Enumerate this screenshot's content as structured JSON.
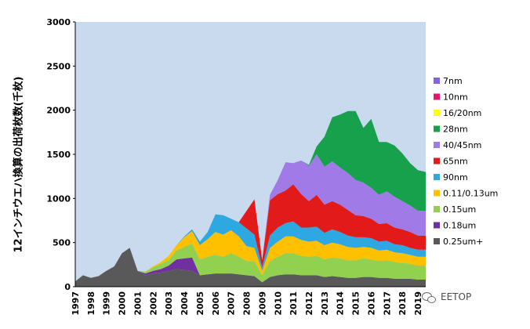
{
  "chart_data": {
    "type": "area",
    "stacked": true,
    "ylabel": "12インチウエハ換算の出荷枚数(千枚)",
    "ylim": [
      0,
      3000
    ],
    "yticks": [
      0,
      500,
      1000,
      1500,
      2000,
      2500,
      3000
    ],
    "x_years": [
      "1997",
      "1998",
      "1999",
      "2000",
      "2001",
      "2002",
      "2003",
      "2004",
      "2005",
      "2006",
      "2007",
      "2008",
      "2009",
      "2010",
      "2011",
      "2012",
      "2013",
      "2014",
      "2015",
      "2016",
      "2017",
      "2018",
      "2019"
    ],
    "x": [
      1997,
      1997.5,
      1998,
      1998.5,
      1999,
      1999.5,
      2000,
      2000.5,
      2001,
      2001.5,
      2002,
      2002.5,
      2003,
      2003.5,
      2004,
      2004.5,
      2005,
      2005.5,
      2006,
      2006.5,
      2007,
      2007.5,
      2008,
      2008.5,
      2009,
      2009.5,
      2010,
      2010.5,
      2011,
      2011.5,
      2012,
      2012.5,
      2013,
      2013.5,
      2014,
      2014.5,
      2015,
      2015.5,
      2016,
      2016.5,
      2017,
      2017.5,
      2018,
      2018.5,
      2019,
      2019.5
    ],
    "legend_position": "right",
    "grid": false,
    "background_color": "#c9d9ee",
    "series": [
      {
        "name": "0.25um+",
        "color": "#595959",
        "values": [
          60,
          130,
          100,
          120,
          180,
          230,
          380,
          440,
          180,
          130,
          150,
          160,
          180,
          200,
          190,
          180,
          130,
          140,
          150,
          150,
          150,
          140,
          130,
          120,
          50,
          110,
          130,
          140,
          140,
          130,
          130,
          130,
          110,
          120,
          110,
          100,
          100,
          110,
          110,
          100,
          100,
          90,
          90,
          90,
          80,
          80
        ]
      },
      {
        "name": "0.18um",
        "color": "#7030a0",
        "values": [
          0,
          0,
          0,
          0,
          0,
          0,
          0,
          0,
          0,
          20,
          30,
          40,
          60,
          110,
          130,
          150,
          0,
          0,
          0,
          0,
          0,
          0,
          0,
          0,
          0,
          0,
          0,
          0,
          0,
          0,
          0,
          0,
          0,
          0,
          0,
          0,
          0,
          0,
          0,
          0,
          0,
          0,
          0,
          0,
          0,
          0
        ]
      },
      {
        "name": "0.15um",
        "color": "#92d050",
        "values": [
          0,
          0,
          0,
          0,
          0,
          0,
          0,
          0,
          0,
          20,
          40,
          60,
          60,
          100,
          130,
          160,
          180,
          200,
          210,
          190,
          230,
          200,
          160,
          170,
          80,
          180,
          210,
          240,
          240,
          220,
          210,
          220,
          200,
          210,
          210,
          200,
          200,
          210,
          200,
          190,
          200,
          190,
          180,
          170,
          160,
          160
        ]
      },
      {
        "name": "0.11/0.13um",
        "color": "#ffc000",
        "values": [
          0,
          0,
          0,
          0,
          0,
          0,
          0,
          0,
          0,
          0,
          10,
          20,
          50,
          60,
          110,
          140,
          160,
          200,
          260,
          250,
          260,
          230,
          170,
          150,
          50,
          150,
          170,
          190,
          190,
          180,
          170,
          170,
          160,
          170,
          160,
          150,
          140,
          130,
          130,
          120,
          120,
          110,
          110,
          100,
          100,
          100
        ]
      },
      {
        "name": "90nm",
        "color": "#2ea8e0",
        "values": [
          0,
          0,
          0,
          0,
          0,
          0,
          0,
          0,
          0,
          0,
          0,
          0,
          0,
          0,
          10,
          20,
          40,
          80,
          200,
          220,
          130,
          160,
          200,
          150,
          40,
          140,
          160,
          150,
          170,
          140,
          160,
          160,
          140,
          150,
          140,
          130,
          120,
          110,
          110,
          100,
          100,
          90,
          90,
          80,
          80,
          80
        ]
      },
      {
        "name": "65nm",
        "color": "#e21a1a",
        "values": [
          0,
          0,
          0,
          0,
          0,
          0,
          0,
          0,
          0,
          0,
          0,
          0,
          0,
          0,
          0,
          0,
          0,
          0,
          0,
          0,
          0,
          0,
          200,
          400,
          80,
          400,
          380,
          370,
          420,
          380,
          300,
          360,
          320,
          320,
          310,
          290,
          250,
          240,
          220,
          200,
          200,
          190,
          180,
          180,
          160,
          160
        ]
      },
      {
        "name": "40/45nm",
        "color": "#a07be8",
        "values": [
          0,
          0,
          0,
          0,
          0,
          0,
          0,
          0,
          0,
          0,
          0,
          0,
          0,
          0,
          0,
          0,
          0,
          0,
          0,
          0,
          0,
          0,
          0,
          0,
          0,
          60,
          160,
          320,
          240,
          380,
          400,
          460,
          430,
          450,
          420,
          420,
          400,
          380,
          350,
          330,
          360,
          350,
          320,
          300,
          280,
          280
        ]
      },
      {
        "name": "28nm",
        "color": "#18a14c",
        "values": [
          0,
          0,
          0,
          0,
          0,
          0,
          0,
          0,
          0,
          0,
          0,
          0,
          0,
          0,
          0,
          0,
          0,
          0,
          0,
          0,
          0,
          0,
          0,
          0,
          0,
          0,
          0,
          0,
          0,
          0,
          10,
          90,
          340,
          500,
          600,
          700,
          780,
          620,
          780,
          600,
          560,
          580,
          540,
          480,
          460,
          440
        ]
      },
      {
        "name": "16/20nm",
        "color": "#ffff00",
        "values": [
          0,
          0,
          0,
          0,
          0,
          0,
          0,
          0,
          0,
          0,
          0,
          0,
          0,
          0,
          0,
          0,
          0,
          0,
          0,
          0,
          0,
          0,
          0,
          0,
          0,
          0,
          0,
          0,
          0,
          0,
          0,
          0,
          0,
          0,
          0,
          0,
          0,
          0,
          0,
          0,
          0,
          0,
          0,
          0,
          0,
          0
        ]
      },
      {
        "name": "10nm",
        "color": "#e0176c",
        "values": [
          0,
          0,
          0,
          0,
          0,
          0,
          0,
          0,
          0,
          0,
          0,
          0,
          0,
          0,
          0,
          0,
          0,
          0,
          0,
          0,
          0,
          0,
          0,
          0,
          0,
          0,
          0,
          0,
          0,
          0,
          0,
          0,
          0,
          0,
          0,
          0,
          0,
          0,
          0,
          0,
          0,
          0,
          0,
          0,
          0,
          0
        ]
      },
      {
        "name": "7nm",
        "color": "#8064e0",
        "values": [
          0,
          0,
          0,
          0,
          0,
          0,
          0,
          0,
          0,
          0,
          0,
          0,
          0,
          0,
          0,
          0,
          0,
          0,
          0,
          0,
          0,
          0,
          0,
          0,
          0,
          0,
          0,
          0,
          0,
          0,
          0,
          0,
          0,
          0,
          0,
          0,
          0,
          0,
          0,
          0,
          0,
          0,
          0,
          0,
          0,
          0
        ]
      }
    ]
  },
  "watermark": {
    "text": "EETOP",
    "icon": "wechat-icon"
  }
}
